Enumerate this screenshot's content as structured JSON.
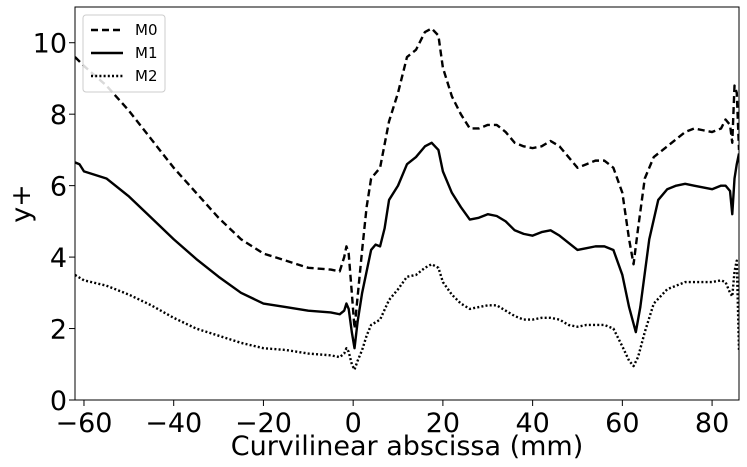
{
  "chart_data": {
    "type": "line",
    "title": "",
    "xlabel": "Curvilinear abscissa (mm)",
    "ylabel": "y+",
    "xlim": [
      -62,
      86
    ],
    "ylim": [
      0,
      11
    ],
    "xticks": [
      -60,
      -40,
      -20,
      0,
      20,
      40,
      60,
      80
    ],
    "yticks": [
      0,
      2,
      4,
      6,
      8,
      10
    ],
    "grid": false,
    "legend_position": "top-left",
    "series": [
      {
        "name": "M0",
        "style": "dashed",
        "color": "#000000",
        "points": [
          [
            -62,
            9.6
          ],
          [
            -60,
            9.35
          ],
          [
            -55,
            8.8
          ],
          [
            -50,
            8.1
          ],
          [
            -45,
            7.3
          ],
          [
            -40,
            6.5
          ],
          [
            -35,
            5.8
          ],
          [
            -30,
            5.1
          ],
          [
            -25,
            4.5
          ],
          [
            -20,
            4.1
          ],
          [
            -15,
            3.9
          ],
          [
            -10,
            3.7
          ],
          [
            -5,
            3.65
          ],
          [
            -3,
            3.6
          ],
          [
            -2,
            4.0
          ],
          [
            -1.5,
            4.3
          ],
          [
            -1,
            4.1
          ],
          [
            -0.3,
            3.0
          ],
          [
            0.3,
            2.0
          ],
          [
            1,
            2.9
          ],
          [
            2,
            4.2
          ],
          [
            3,
            5.4
          ],
          [
            4,
            6.2
          ],
          [
            6,
            6.5
          ],
          [
            8,
            7.8
          ],
          [
            10,
            8.6
          ],
          [
            12,
            9.6
          ],
          [
            14,
            9.8
          ],
          [
            16,
            10.3
          ],
          [
            17.5,
            10.4
          ],
          [
            19,
            10.2
          ],
          [
            20,
            9.3
          ],
          [
            22,
            8.5
          ],
          [
            24,
            8.0
          ],
          [
            26,
            7.6
          ],
          [
            28,
            7.6
          ],
          [
            30,
            7.7
          ],
          [
            32,
            7.7
          ],
          [
            34,
            7.5
          ],
          [
            36,
            7.2
          ],
          [
            38,
            7.1
          ],
          [
            40,
            7.05
          ],
          [
            42,
            7.1
          ],
          [
            44,
            7.25
          ],
          [
            46,
            7.1
          ],
          [
            48,
            6.8
          ],
          [
            50,
            6.5
          ],
          [
            52,
            6.6
          ],
          [
            54,
            6.7
          ],
          [
            56,
            6.7
          ],
          [
            58,
            6.5
          ],
          [
            60,
            5.8
          ],
          [
            61.5,
            4.5
          ],
          [
            62.5,
            3.8
          ],
          [
            63.5,
            4.8
          ],
          [
            65,
            6.2
          ],
          [
            67,
            6.8
          ],
          [
            70,
            7.1
          ],
          [
            72,
            7.3
          ],
          [
            74,
            7.5
          ],
          [
            76,
            7.6
          ],
          [
            78,
            7.55
          ],
          [
            80,
            7.5
          ],
          [
            82,
            7.6
          ],
          [
            83,
            7.85
          ],
          [
            84,
            7.7
          ],
          [
            84.5,
            7.2
          ],
          [
            85,
            8.8
          ],
          [
            85.5,
            8.6
          ],
          [
            86,
            7.0
          ]
        ]
      },
      {
        "name": "M1",
        "style": "solid",
        "color": "#000000",
        "points": [
          [
            -62,
            6.65
          ],
          [
            -61,
            6.6
          ],
          [
            -60,
            6.4
          ],
          [
            -55,
            6.2
          ],
          [
            -50,
            5.7
          ],
          [
            -45,
            5.1
          ],
          [
            -40,
            4.5
          ],
          [
            -35,
            3.95
          ],
          [
            -30,
            3.45
          ],
          [
            -25,
            3.0
          ],
          [
            -20,
            2.7
          ],
          [
            -15,
            2.6
          ],
          [
            -10,
            2.5
          ],
          [
            -5,
            2.45
          ],
          [
            -3,
            2.4
          ],
          [
            -2,
            2.5
          ],
          [
            -1.5,
            2.7
          ],
          [
            -1,
            2.55
          ],
          [
            -0.3,
            1.9
          ],
          [
            0.3,
            1.45
          ],
          [
            1,
            2.2
          ],
          [
            2,
            3.0
          ],
          [
            3,
            3.6
          ],
          [
            4,
            4.2
          ],
          [
            5,
            4.35
          ],
          [
            6,
            4.3
          ],
          [
            7,
            4.8
          ],
          [
            8,
            5.6
          ],
          [
            10,
            6.0
          ],
          [
            12,
            6.6
          ],
          [
            14,
            6.8
          ],
          [
            16,
            7.1
          ],
          [
            17.5,
            7.2
          ],
          [
            19,
            7.0
          ],
          [
            20,
            6.4
          ],
          [
            22,
            5.8
          ],
          [
            24,
            5.4
          ],
          [
            26,
            5.05
          ],
          [
            28,
            5.1
          ],
          [
            30,
            5.2
          ],
          [
            32,
            5.15
          ],
          [
            34,
            5.0
          ],
          [
            36,
            4.75
          ],
          [
            38,
            4.65
          ],
          [
            40,
            4.6
          ],
          [
            42,
            4.7
          ],
          [
            44,
            4.75
          ],
          [
            46,
            4.6
          ],
          [
            48,
            4.4
          ],
          [
            50,
            4.2
          ],
          [
            52,
            4.25
          ],
          [
            54,
            4.3
          ],
          [
            56,
            4.3
          ],
          [
            58,
            4.2
          ],
          [
            60,
            3.5
          ],
          [
            61.5,
            2.6
          ],
          [
            63,
            1.9
          ],
          [
            64,
            2.6
          ],
          [
            66,
            4.5
          ],
          [
            68,
            5.6
          ],
          [
            70,
            5.9
          ],
          [
            72,
            6.0
          ],
          [
            74,
            6.05
          ],
          [
            76,
            6.0
          ],
          [
            78,
            5.95
          ],
          [
            80,
            5.9
          ],
          [
            82,
            6.0
          ],
          [
            83,
            6.0
          ],
          [
            84,
            5.85
          ],
          [
            84.5,
            5.2
          ],
          [
            85,
            6.2
          ],
          [
            85.5,
            6.6
          ],
          [
            86,
            6.9
          ]
        ]
      },
      {
        "name": "M2",
        "style": "dotted",
        "color": "#000000",
        "points": [
          [
            -62,
            3.5
          ],
          [
            -60,
            3.35
          ],
          [
            -55,
            3.2
          ],
          [
            -50,
            2.95
          ],
          [
            -45,
            2.65
          ],
          [
            -40,
            2.3
          ],
          [
            -35,
            2.0
          ],
          [
            -30,
            1.8
          ],
          [
            -25,
            1.6
          ],
          [
            -20,
            1.45
          ],
          [
            -15,
            1.4
          ],
          [
            -10,
            1.3
          ],
          [
            -5,
            1.25
          ],
          [
            -3,
            1.2
          ],
          [
            -2,
            1.3
          ],
          [
            -1.5,
            1.45
          ],
          [
            -1,
            1.35
          ],
          [
            -0.3,
            1.0
          ],
          [
            0.3,
            0.85
          ],
          [
            1,
            1.1
          ],
          [
            2,
            1.4
          ],
          [
            3,
            1.8
          ],
          [
            4,
            2.1
          ],
          [
            6,
            2.25
          ],
          [
            8,
            2.8
          ],
          [
            10,
            3.1
          ],
          [
            12,
            3.45
          ],
          [
            14,
            3.5
          ],
          [
            16,
            3.7
          ],
          [
            17.5,
            3.8
          ],
          [
            19,
            3.7
          ],
          [
            20,
            3.3
          ],
          [
            22,
            2.95
          ],
          [
            24,
            2.7
          ],
          [
            26,
            2.55
          ],
          [
            28,
            2.6
          ],
          [
            30,
            2.65
          ],
          [
            32,
            2.65
          ],
          [
            34,
            2.5
          ],
          [
            36,
            2.35
          ],
          [
            38,
            2.25
          ],
          [
            40,
            2.25
          ],
          [
            42,
            2.3
          ],
          [
            44,
            2.3
          ],
          [
            46,
            2.25
          ],
          [
            48,
            2.1
          ],
          [
            50,
            2.05
          ],
          [
            52,
            2.1
          ],
          [
            54,
            2.1
          ],
          [
            56,
            2.1
          ],
          [
            58,
            2.0
          ],
          [
            60,
            1.5
          ],
          [
            61.5,
            1.1
          ],
          [
            62.5,
            0.95
          ],
          [
            63.5,
            1.2
          ],
          [
            65,
            1.9
          ],
          [
            67,
            2.7
          ],
          [
            70,
            3.1
          ],
          [
            72,
            3.2
          ],
          [
            74,
            3.3
          ],
          [
            76,
            3.3
          ],
          [
            78,
            3.3
          ],
          [
            80,
            3.3
          ],
          [
            82,
            3.35
          ],
          [
            83,
            3.3
          ],
          [
            84,
            3.0
          ],
          [
            84.5,
            2.9
          ],
          [
            85,
            3.6
          ],
          [
            85.5,
            3.9
          ],
          [
            86,
            1.4
          ]
        ]
      }
    ]
  }
}
